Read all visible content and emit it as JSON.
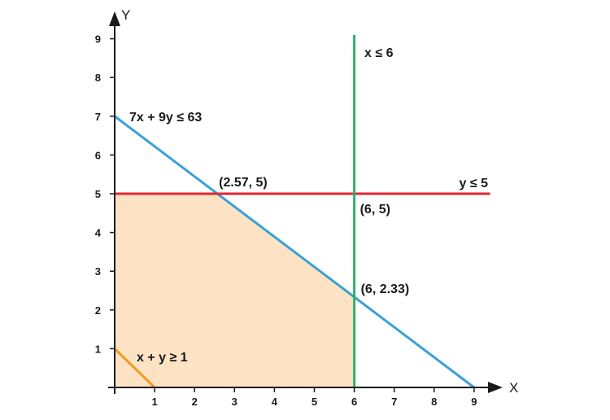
{
  "chart_data": {
    "type": "line",
    "title": "",
    "xlabel": "X",
    "ylabel": "Y",
    "xlim": [
      0,
      9
    ],
    "ylim": [
      0,
      9
    ],
    "x_ticks": [
      1,
      2,
      3,
      4,
      5,
      6,
      7,
      8,
      9
    ],
    "y_ticks": [
      1,
      2,
      3,
      4,
      5,
      6,
      7,
      8,
      9
    ],
    "grid": false,
    "feasible_region": {
      "color": "#fde3c4",
      "vertices": [
        [
          0,
          0
        ],
        [
          0,
          5
        ],
        [
          2.57,
          5
        ],
        [
          6,
          2.33
        ],
        [
          6,
          0
        ]
      ]
    },
    "series": [
      {
        "label": "7x + 9y ≤ 63",
        "color": "#3aa0d8",
        "points": [
          [
            0,
            7
          ],
          [
            9,
            0
          ]
        ]
      },
      {
        "label": "y ≤ 5",
        "color": "#e32531",
        "points": [
          [
            0,
            5
          ],
          [
            9.4,
            5
          ]
        ]
      },
      {
        "label": "x ≤ 6",
        "color": "#2db36a",
        "points": [
          [
            6,
            0
          ],
          [
            6,
            9.1
          ]
        ]
      },
      {
        "label": "x + y ≥ 1",
        "color": "#f39a1e",
        "points": [
          [
            0,
            1
          ],
          [
            1,
            0
          ]
        ]
      }
    ],
    "annotations": [
      {
        "text": "(2.57, 5)",
        "x": 2.57,
        "y": 5
      },
      {
        "text": "(6, 5)",
        "x": 6,
        "y": 5
      },
      {
        "text": "(6, 2.33)",
        "x": 6,
        "y": 2.33
      }
    ],
    "axis_color": "#1a1a1a"
  }
}
